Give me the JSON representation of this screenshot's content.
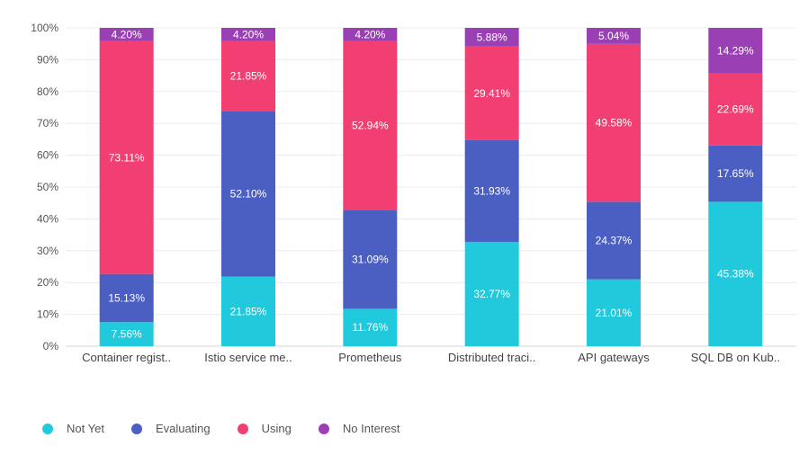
{
  "chart_data": {
    "type": "bar",
    "stacked": true,
    "normalized": true,
    "categories": [
      "Container regist..",
      "Istio service me..",
      "Prometheus",
      "Distributed traci..",
      "API gateways",
      "SQL DB on Kub.."
    ],
    "series": [
      {
        "name": "Not Yet",
        "color": "#21c9dc",
        "values": [
          7.56,
          21.85,
          11.76,
          32.77,
          21.01,
          45.38
        ],
        "labels": [
          "7.56%",
          "21.85%",
          "11.76%",
          "32.77%",
          "21.01%",
          "45.38%"
        ]
      },
      {
        "name": "Evaluating",
        "color": "#4a5fc1",
        "values": [
          15.13,
          52.1,
          31.09,
          31.93,
          24.37,
          17.65
        ],
        "labels": [
          "15.13%",
          "52.10%",
          "31.09%",
          "31.93%",
          "24.37%",
          "17.65%"
        ]
      },
      {
        "name": "Using",
        "color": "#f13f72",
        "values": [
          73.11,
          21.85,
          52.94,
          29.41,
          49.58,
          22.69
        ],
        "labels": [
          "73.11%",
          "21.85%",
          "52.94%",
          "29.41%",
          "49.58%",
          "22.69%"
        ]
      },
      {
        "name": "No Interest",
        "color": "#9b3fb4",
        "values": [
          4.2,
          4.2,
          4.2,
          5.88,
          5.04,
          14.29
        ],
        "labels": [
          "4.20%",
          "4.20%",
          "4.20%",
          "5.88%",
          "5.04%",
          "14.29%"
        ]
      }
    ],
    "y_ticks": [
      "0%",
      "10%",
      "20%",
      "30%",
      "40%",
      "50%",
      "60%",
      "70%",
      "80%",
      "90%",
      "100%"
    ],
    "ylim": [
      0,
      100
    ],
    "grid": true,
    "legend_position": "bottom-left",
    "title": "",
    "xlabel": "",
    "ylabel": ""
  }
}
